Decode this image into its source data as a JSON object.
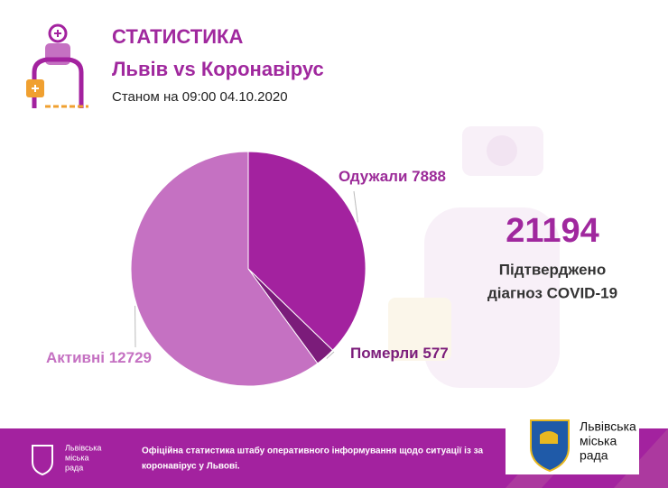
{
  "header": {
    "title": "СТАТИСТИКА",
    "subtitle": "Львів vs Коронавірус",
    "date": "Станом на 09:00 04.10.2020"
  },
  "chart_data": {
    "type": "pie",
    "categories": [
      "Одужали",
      "Померли",
      "Активні"
    ],
    "series": [
      {
        "values": [
          7888,
          577,
          12729
        ],
        "colors": [
          "#a3229f",
          "#7b1c7a",
          "#c571c2"
        ]
      }
    ]
  },
  "total": {
    "value": 21194,
    "caption": [
      "Підтверджено",
      "діагноз COVID-19"
    ]
  },
  "footer": {
    "logo_text": [
      "Львівська",
      "міська",
      "рада"
    ],
    "text": [
      "Офіційна статистика штабу оперативного інформування щодо ситуації із за",
      "коронавірус у Львові."
    ],
    "brand": [
      "Львівська",
      "міська",
      "рада"
    ]
  }
}
